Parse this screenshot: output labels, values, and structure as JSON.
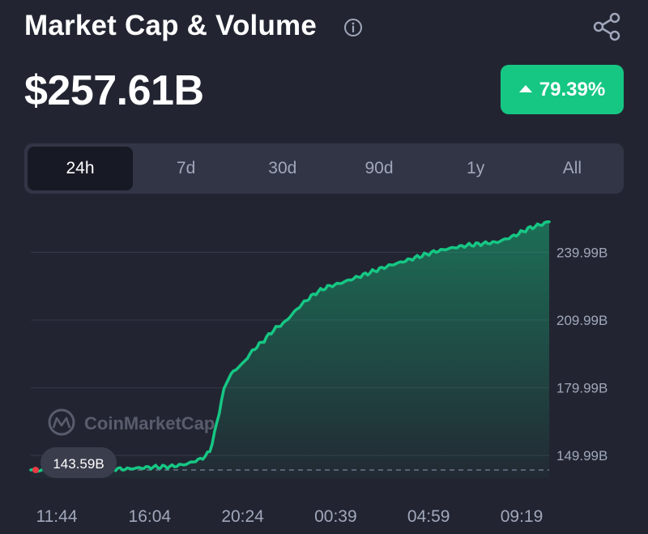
{
  "header": {
    "title": "Market Cap & Volume",
    "info_icon": "info-circle-icon",
    "share_icon": "share-nodes-icon"
  },
  "price": {
    "value": "$257.61B",
    "change": "79.39%",
    "change_direction": "up",
    "change_color": "#16c784"
  },
  "tabs": [
    {
      "label": "24h",
      "active": true
    },
    {
      "label": "7d",
      "active": false
    },
    {
      "label": "30d",
      "active": false
    },
    {
      "label": "90d",
      "active": false
    },
    {
      "label": "1y",
      "active": false
    },
    {
      "label": "All",
      "active": false
    }
  ],
  "chart_data": {
    "type": "area",
    "title": "",
    "xlabel": "",
    "ylabel": "",
    "watermark": "CoinMarketCap",
    "x_ticks": [
      "11:44",
      "16:04",
      "20:24",
      "00:39",
      "04:59",
      "09:19"
    ],
    "y_ticks": [
      {
        "value": 149.99,
        "label": "149.99B"
      },
      {
        "value": 179.99,
        "label": "179.99B"
      },
      {
        "value": 209.99,
        "label": "209.99B"
      },
      {
        "value": 239.99,
        "label": "239.99B"
      }
    ],
    "ylim": [
      140,
      262
    ],
    "baseline": {
      "value": 143.59,
      "label": "143.59B"
    },
    "line_color": "#16c784",
    "x": [
      0,
      0.03,
      0.06,
      0.09,
      0.12,
      0.15,
      0.18,
      0.21,
      0.24,
      0.27,
      0.3,
      0.33,
      0.345,
      0.36,
      0.37,
      0.38,
      0.39,
      0.41,
      0.43,
      0.45,
      0.47,
      0.49,
      0.51,
      0.53,
      0.55,
      0.57,
      0.6,
      0.63,
      0.66,
      0.69,
      0.72,
      0.75,
      0.78,
      0.81,
      0.84,
      0.87,
      0.9,
      0.93,
      0.96,
      1.0
    ],
    "values": [
      143.6,
      143.2,
      144.0,
      143.7,
      144.4,
      144.2,
      144.0,
      144.5,
      144.9,
      145.1,
      146.2,
      148.6,
      151.5,
      165.0,
      177.0,
      184.0,
      187.0,
      191.0,
      197.0,
      201.0,
      206.0,
      209.0,
      214.0,
      218.5,
      222.0,
      224.5,
      226.5,
      229.0,
      231.5,
      234.0,
      236.0,
      238.2,
      240.3,
      241.8,
      243.0,
      243.8,
      244.5,
      247.0,
      250.5,
      253.5
    ],
    "values_unit": "B USD"
  }
}
